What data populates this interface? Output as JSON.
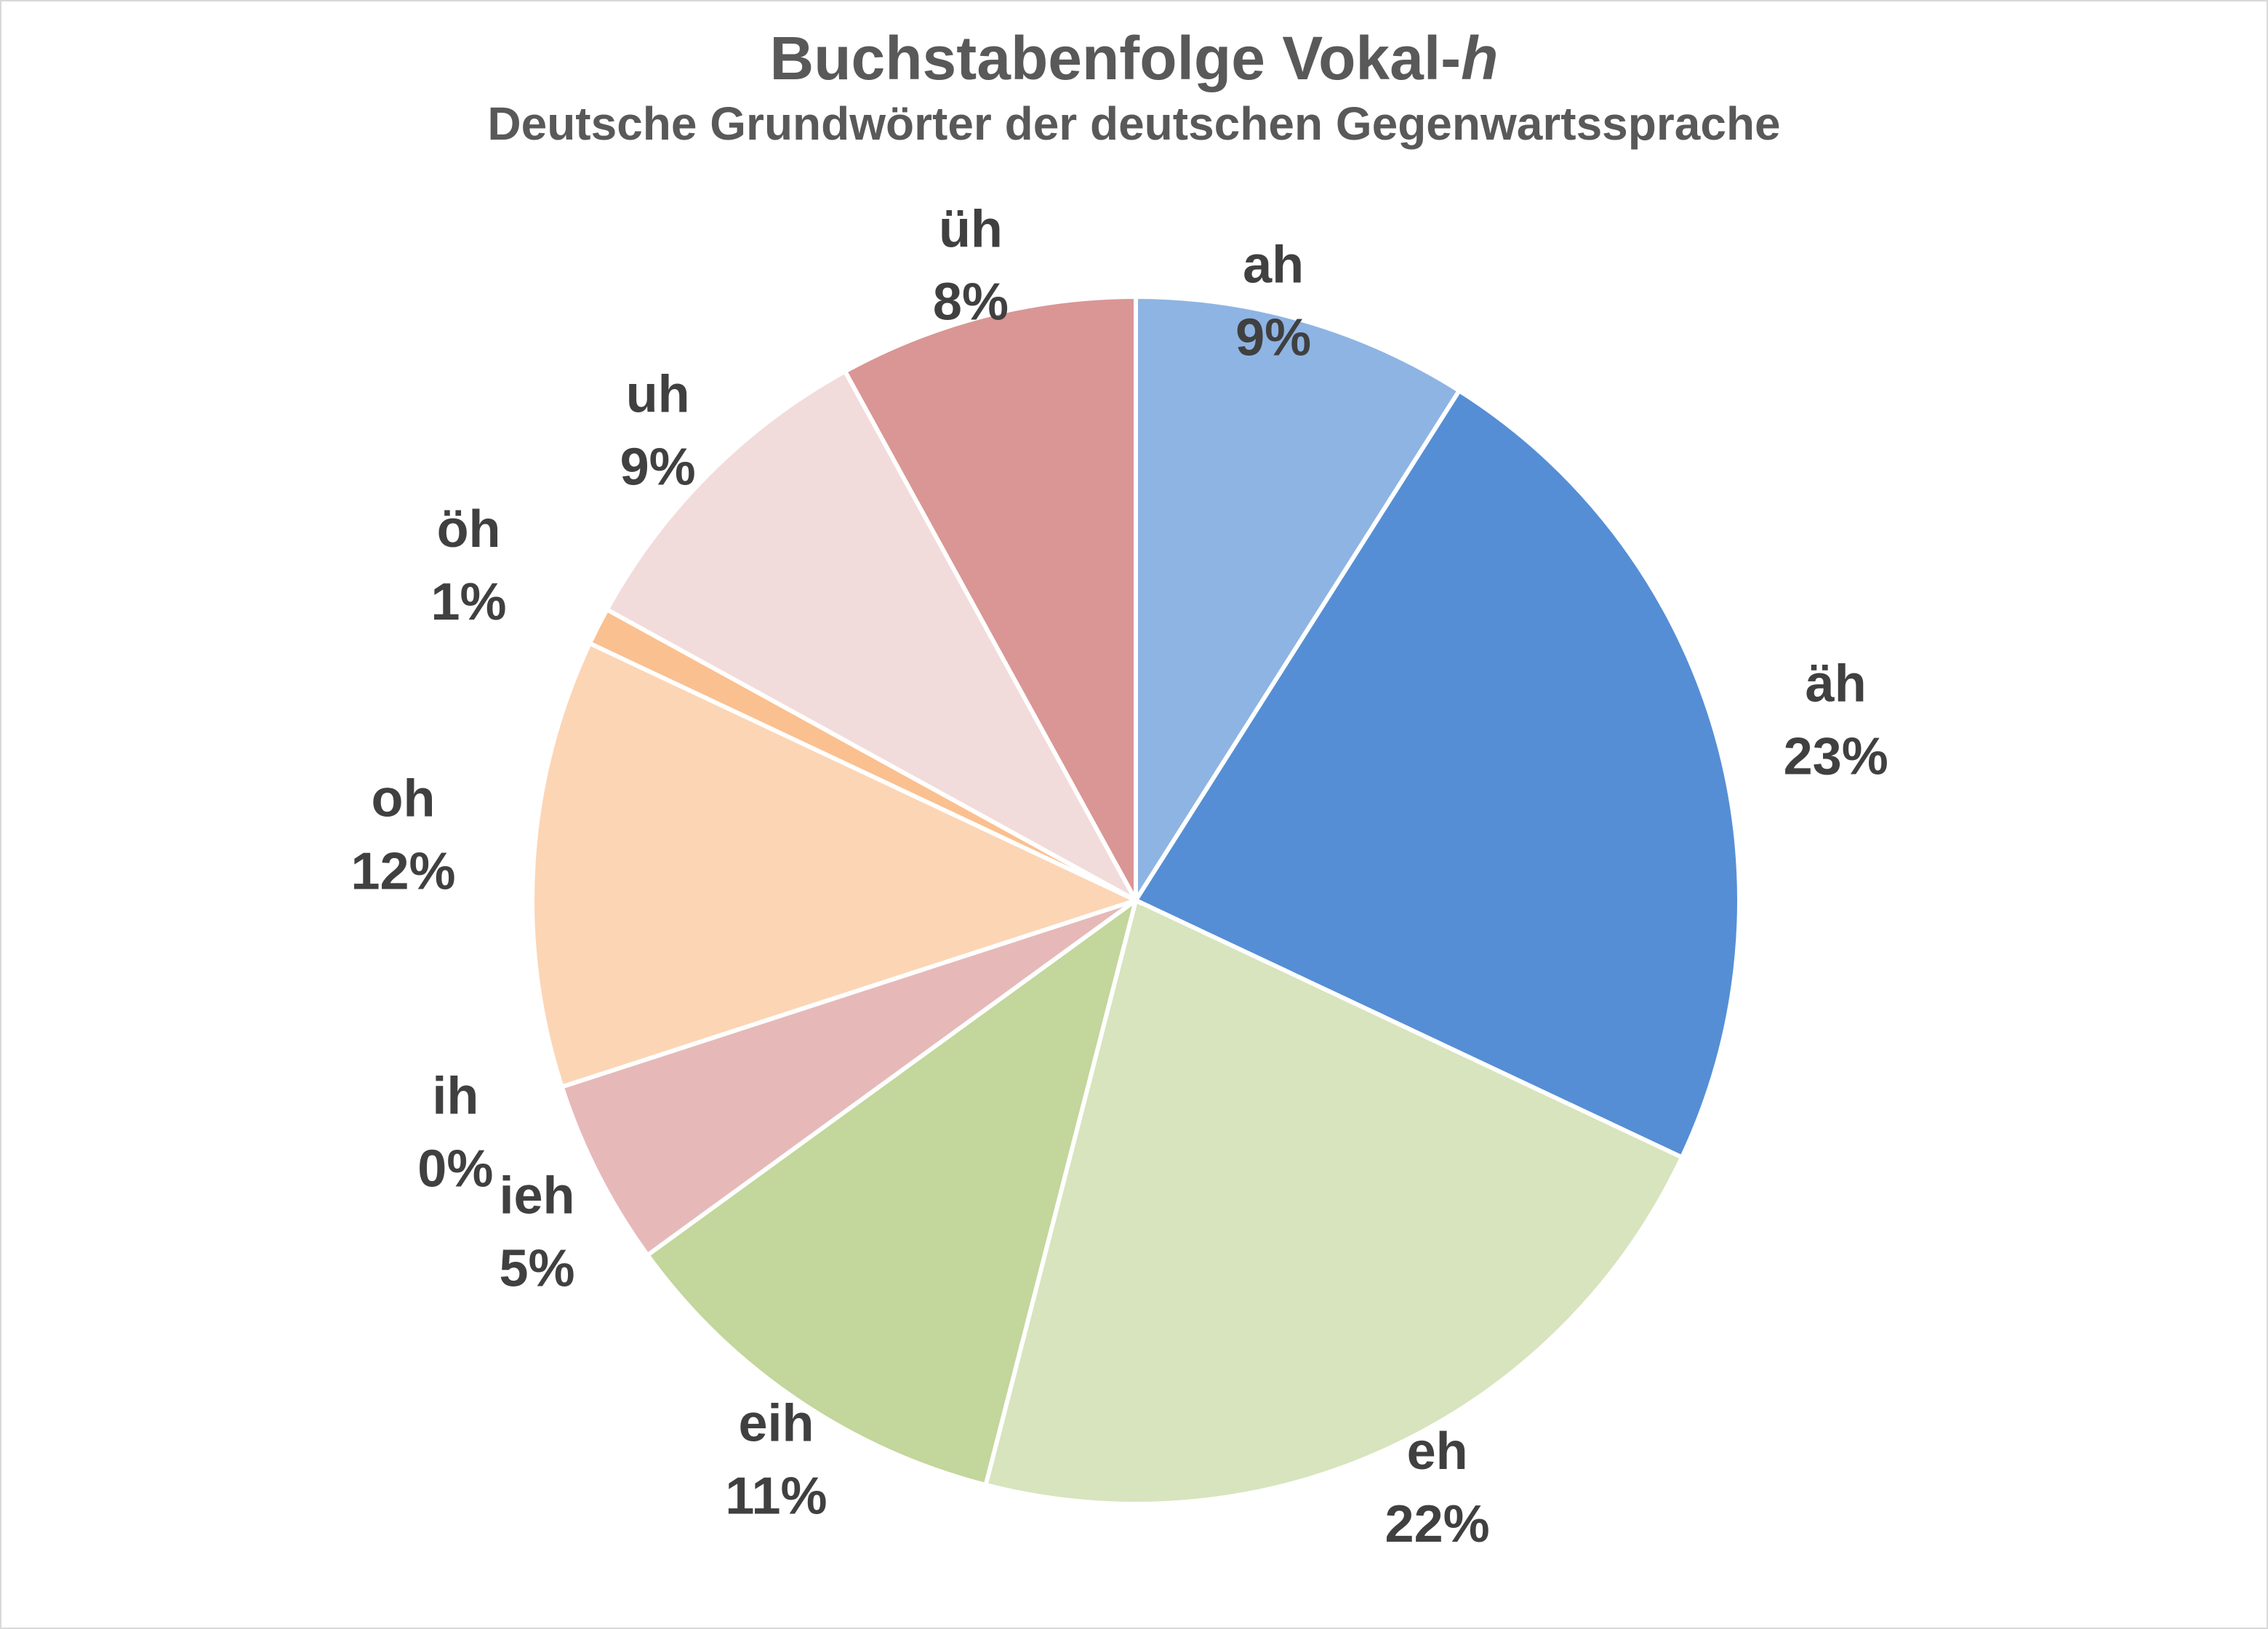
{
  "chart_data": {
    "type": "pie",
    "title": "Buchstabenfolge Vokal-",
    "title_italic_suffix": "h",
    "subtitle": "Deutsche Grundwörter der deutschen Gegenwartssprache",
    "start": "12 o'clock, clockwise",
    "slices": [
      {
        "label": "ah",
        "value": 9,
        "percent_label": "9%",
        "color": "#8EB4E3"
      },
      {
        "label": "äh",
        "value": 23,
        "percent_label": "23%",
        "color": "#558ED5"
      },
      {
        "label": "eh",
        "value": 22,
        "percent_label": "22%",
        "color": "#D7E4BD"
      },
      {
        "label": "eih",
        "value": 11,
        "percent_label": "11%",
        "color": "#C3D69B"
      },
      {
        "label": "ieh",
        "value": 5,
        "percent_label": "5%",
        "color": "#E6B9B8"
      },
      {
        "label": "ih",
        "value": 0,
        "percent_label": "0%",
        "color": "#F2DCDB"
      },
      {
        "label": "oh",
        "value": 12,
        "percent_label": "12%",
        "color": "#FCD5B5"
      },
      {
        "label": "öh",
        "value": 1,
        "percent_label": "1%",
        "color": "#FAC090"
      },
      {
        "label": "uh",
        "value": 9,
        "percent_label": "9%",
        "color": "#F2DCDB"
      },
      {
        "label": "üh",
        "value": 8,
        "percent_label": "8%",
        "color": "#D99694"
      }
    ]
  }
}
